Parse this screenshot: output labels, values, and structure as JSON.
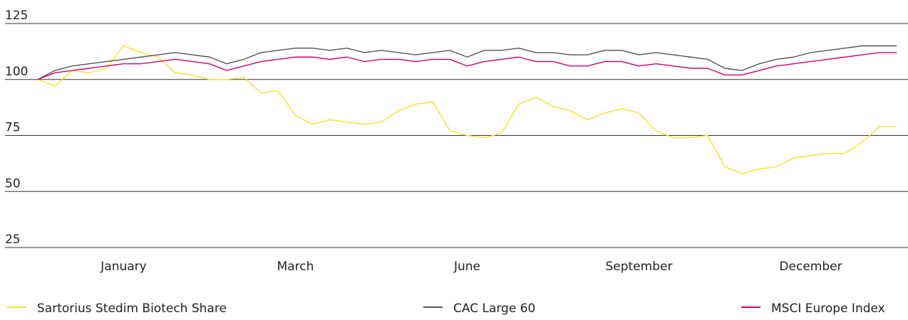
{
  "chart_data": {
    "type": "line",
    "categories": [
      null,
      null,
      null,
      null,
      null,
      "January",
      null,
      null,
      null,
      null,
      null,
      null,
      null,
      null,
      null,
      "March",
      null,
      null,
      null,
      null,
      null,
      null,
      null,
      null,
      null,
      "June",
      null,
      null,
      null,
      null,
      null,
      null,
      null,
      null,
      null,
      "September",
      null,
      null,
      null,
      null,
      null,
      null,
      null,
      null,
      null,
      "December",
      null,
      null,
      null,
      null,
      null
    ],
    "series": [
      {
        "name": "Sartorius Stedim Biotech Share",
        "color": "#f7e425",
        "values": [
          100,
          97,
          104,
          103,
          105,
          115,
          112,
          110,
          103,
          102,
          100,
          100,
          101,
          94,
          95,
          84,
          80,
          82,
          81,
          80,
          81,
          86,
          89,
          90,
          77,
          75,
          74,
          76,
          89,
          92,
          88,
          86,
          82,
          85,
          87,
          85,
          77,
          74,
          74,
          75,
          61,
          58,
          60,
          61,
          65,
          66,
          67,
          67,
          72,
          79,
          79
        ]
      },
      {
        "name": "CAC Large 60",
        "color": "#555555",
        "values": [
          100,
          104,
          106,
          107,
          108,
          109,
          110,
          111,
          112,
          111,
          110,
          107,
          109,
          112,
          113,
          114,
          114,
          113,
          114,
          112,
          113,
          112,
          111,
          112,
          113,
          110,
          113,
          113,
          114,
          112,
          112,
          111,
          111,
          113,
          113,
          111,
          112,
          111,
          110,
          109,
          105,
          104,
          107,
          109,
          110,
          112,
          113,
          114,
          115,
          115,
          115
        ]
      },
      {
        "name": "MSCI Europe Index",
        "color": "#d4006f",
        "values": [
          100,
          103,
          104,
          105,
          106,
          107,
          107,
          108,
          109,
          108,
          107,
          104,
          106,
          108,
          109,
          110,
          110,
          109,
          110,
          108,
          109,
          109,
          108,
          109,
          109,
          106,
          108,
          109,
          110,
          108,
          108,
          106,
          106,
          108,
          108,
          106,
          107,
          106,
          105,
          105,
          102,
          102,
          104,
          106,
          107,
          108,
          109,
          110,
          111,
          112,
          112
        ]
      }
    ],
    "ylim": [
      25,
      125
    ],
    "yticks": [
      25,
      50,
      75,
      100,
      125
    ],
    "grid": true
  }
}
